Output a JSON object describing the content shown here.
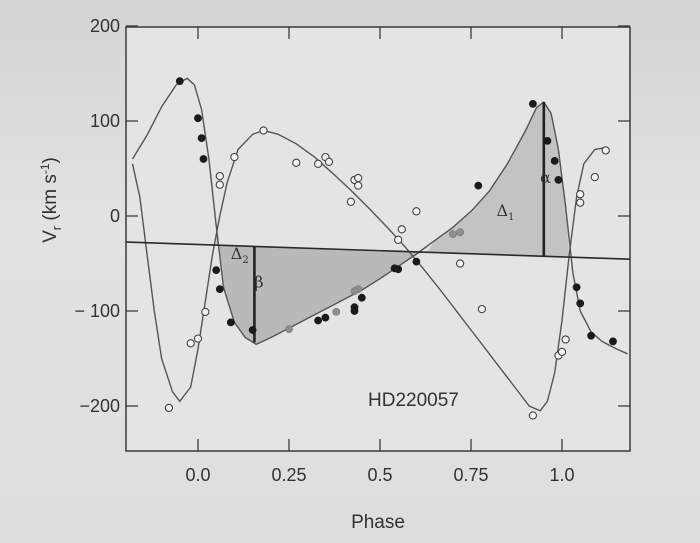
{
  "chart_data": {
    "type": "line",
    "title": "HD220057",
    "xlabel": "Phase",
    "ylabel": "V",
    "ylabel_sub": "r",
    "ylabel_units": " (km s",
    "ylabel_exp": "-1",
    "ylabel_close": ")",
    "xlim": [
      -0.18,
      1.18
    ],
    "ylim": [
      -255,
      200
    ],
    "x_ticks": [
      {
        "value": 0.0,
        "label": "0.0"
      },
      {
        "value": 0.25,
        "label": "0.25"
      },
      {
        "value": 0.5,
        "label": "0.5"
      },
      {
        "value": 0.75,
        "label": "0.75"
      },
      {
        "value": 1.0,
        "label": "1.0"
      }
    ],
    "y_ticks": [
      {
        "value": 200,
        "label": "200"
      },
      {
        "value": 100,
        "label": "100"
      },
      {
        "value": 0,
        "label": "0"
      },
      {
        "value": -100,
        "label": "− 100"
      },
      {
        "value": -200,
        "label": "−200"
      }
    ],
    "gamma_velocity": -30,
    "annotations": [
      {
        "symbol": "α",
        "x": 0.94,
        "y": 35
      },
      {
        "symbol": "β",
        "x": 0.155,
        "y": -75
      },
      {
        "symbol": "Δ",
        "sub": "1",
        "x": 0.82,
        "y": 0
      },
      {
        "symbol": "Δ",
        "sub": "2",
        "x": 0.09,
        "y": -45
      }
    ],
    "series": [
      {
        "name": "",
        "style": "curve",
        "color": "#555555",
        "points": [
          [
            -0.18,
            60
          ],
          [
            -0.14,
            85
          ],
          [
            -0.1,
            115
          ],
          [
            -0.06,
            138
          ],
          [
            -0.03,
            145
          ],
          [
            -0.01,
            138
          ],
          [
            0.01,
            112
          ],
          [
            0.03,
            60
          ],
          [
            0.05,
            -10
          ],
          [
            0.07,
            -75
          ],
          [
            0.1,
            -112
          ],
          [
            0.13,
            -128
          ],
          [
            0.16,
            -135
          ],
          [
            0.2,
            -128
          ],
          [
            0.25,
            -118
          ],
          [
            0.3,
            -108
          ],
          [
            0.35,
            -98
          ],
          [
            0.4,
            -88
          ],
          [
            0.45,
            -78
          ],
          [
            0.5,
            -66
          ],
          [
            0.55,
            -53
          ],
          [
            0.6,
            -40
          ],
          [
            0.65,
            -26
          ],
          [
            0.7,
            -12
          ],
          [
            0.75,
            5
          ],
          [
            0.8,
            26
          ],
          [
            0.85,
            55
          ],
          [
            0.9,
            90
          ],
          [
            0.93,
            114
          ],
          [
            0.95,
            120
          ],
          [
            0.97,
            108
          ],
          [
            0.99,
            70
          ],
          [
            1.01,
            10
          ],
          [
            1.03,
            -60
          ],
          [
            1.05,
            -100
          ],
          [
            1.08,
            -122
          ],
          [
            1.11,
            -132
          ],
          [
            1.15,
            -140
          ],
          [
            1.18,
            -145
          ]
        ]
      },
      {
        "name": "",
        "style": "curve",
        "color": "#555555",
        "points": [
          [
            -0.18,
            55
          ],
          [
            -0.16,
            20
          ],
          [
            -0.14,
            -40
          ],
          [
            -0.12,
            -100
          ],
          [
            -0.1,
            -150
          ],
          [
            -0.07,
            -185
          ],
          [
            -0.05,
            -195
          ],
          [
            -0.02,
            -180
          ],
          [
            0.0,
            -140
          ],
          [
            0.02,
            -90
          ],
          [
            0.04,
            -40
          ],
          [
            0.06,
            0
          ],
          [
            0.08,
            35
          ],
          [
            0.11,
            70
          ],
          [
            0.15,
            86
          ],
          [
            0.18,
            90
          ],
          [
            0.22,
            86
          ],
          [
            0.27,
            76
          ],
          [
            0.32,
            62
          ],
          [
            0.37,
            45
          ],
          [
            0.42,
            27
          ],
          [
            0.47,
            8
          ],
          [
            0.52,
            -12
          ],
          [
            0.57,
            -33
          ],
          [
            0.62,
            -56
          ],
          [
            0.67,
            -80
          ],
          [
            0.72,
            -105
          ],
          [
            0.77,
            -130
          ],
          [
            0.82,
            -155
          ],
          [
            0.87,
            -180
          ],
          [
            0.91,
            -200
          ],
          [
            0.94,
            -205
          ],
          [
            0.96,
            -195
          ],
          [
            0.98,
            -165
          ],
          [
            1.0,
            -110
          ],
          [
            1.02,
            -40
          ],
          [
            1.04,
            20
          ],
          [
            1.06,
            55
          ],
          [
            1.09,
            70
          ],
          [
            1.12,
            72
          ]
        ]
      },
      {
        "name": "",
        "style": "filled-markers",
        "color": "#1a1a1a",
        "points": [
          [
            -0.05,
            142
          ],
          [
            0.0,
            103
          ],
          [
            0.01,
            82
          ],
          [
            0.015,
            60
          ],
          [
            0.05,
            -57
          ],
          [
            0.06,
            -77
          ],
          [
            0.09,
            -112
          ],
          [
            0.15,
            -120
          ],
          [
            0.33,
            -110
          ],
          [
            0.35,
            -107
          ],
          [
            0.43,
            -100
          ],
          [
            0.43,
            -96
          ],
          [
            0.45,
            -86
          ],
          [
            0.54,
            -55
          ],
          [
            0.55,
            -56
          ],
          [
            0.6,
            -48
          ],
          [
            0.77,
            32
          ],
          [
            0.92,
            118
          ],
          [
            0.96,
            79
          ],
          [
            0.98,
            58
          ],
          [
            0.99,
            38
          ],
          [
            1.04,
            -75
          ],
          [
            1.05,
            -92
          ],
          [
            1.08,
            -126
          ],
          [
            1.14,
            -132
          ]
        ]
      },
      {
        "name": "",
        "style": "grey-markers",
        "color": "#8e8e8e",
        "points": [
          [
            0.25,
            -119
          ],
          [
            0.38,
            -101
          ],
          [
            0.44,
            -77
          ],
          [
            0.43,
            -79
          ],
          [
            0.7,
            -19
          ],
          [
            0.72,
            -17
          ]
        ]
      },
      {
        "name": "",
        "style": "open-markers",
        "color": "#444444",
        "points": [
          [
            -0.08,
            -202
          ],
          [
            -0.02,
            -134
          ],
          [
            0.0,
            -129
          ],
          [
            0.02,
            -101
          ],
          [
            0.06,
            33
          ],
          [
            0.06,
            42
          ],
          [
            0.1,
            62
          ],
          [
            0.18,
            90
          ],
          [
            0.27,
            56
          ],
          [
            0.33,
            55
          ],
          [
            0.35,
            62
          ],
          [
            0.36,
            57
          ],
          [
            0.43,
            38
          ],
          [
            0.44,
            40
          ],
          [
            0.44,
            32
          ],
          [
            0.42,
            15
          ],
          [
            0.55,
            -25
          ],
          [
            0.56,
            -14
          ],
          [
            0.6,
            5
          ],
          [
            0.72,
            -50
          ],
          [
            0.78,
            -98
          ],
          [
            0.92,
            -210
          ],
          [
            0.99,
            -147
          ],
          [
            1.0,
            -143
          ],
          [
            1.01,
            -130
          ],
          [
            1.05,
            14
          ],
          [
            1.05,
            23
          ],
          [
            1.09,
            41
          ],
          [
            1.12,
            69
          ]
        ]
      }
    ]
  }
}
